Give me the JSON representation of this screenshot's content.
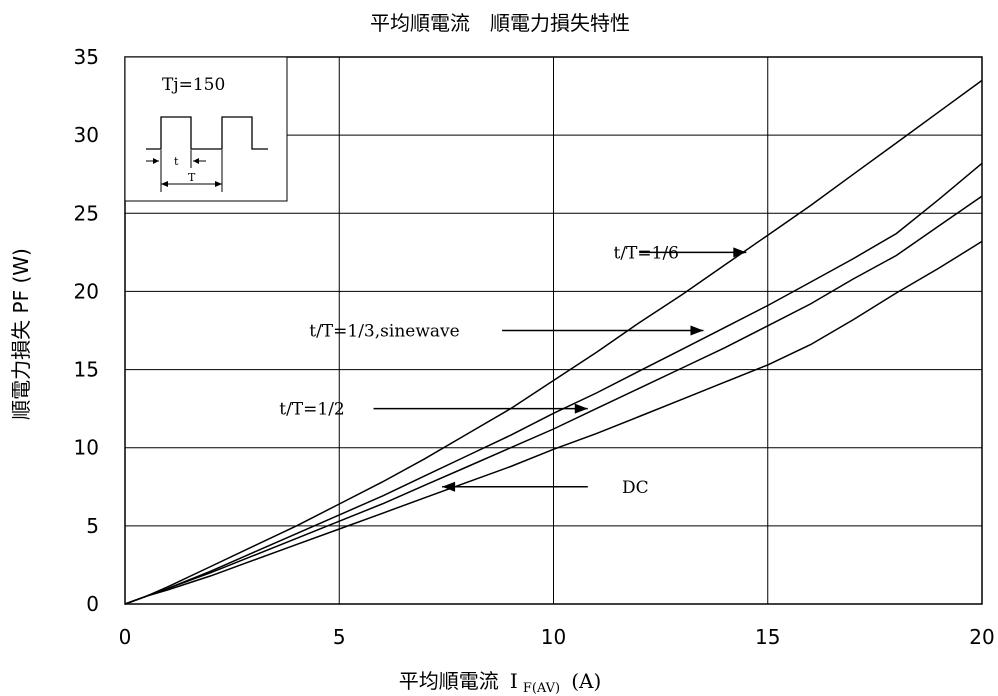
{
  "chart_data": {
    "type": "line",
    "title": "平均順電流　順電力損失特性",
    "xlabel_prefix": "平均順電流",
    "xlabel_symbol": "I",
    "xlabel_subscript": "F(AV)",
    "xlabel_unit": "(A)",
    "ylabel": "順電力損失 PF (W)",
    "xlim": [
      0,
      20
    ],
    "ylim": [
      0,
      35
    ],
    "xticks": [
      0,
      5,
      10,
      15,
      20
    ],
    "yticks": [
      0,
      5,
      10,
      15,
      20,
      25,
      30,
      35
    ],
    "grid": true,
    "series": [
      {
        "name": "t/T=1/6",
        "x": [
          0,
          0.5,
          1,
          2,
          3,
          4,
          5,
          6,
          7,
          8,
          9,
          10,
          11,
          12,
          13,
          14,
          15,
          16,
          17,
          18,
          19,
          20
        ],
        "y": [
          0,
          0.5,
          1.1,
          2.4,
          3.7,
          5.0,
          6.4,
          7.8,
          9.3,
          10.9,
          12.5,
          14.3,
          16.1,
          18.0,
          19.8,
          21.7,
          23.6,
          25.5,
          27.5,
          29.5,
          31.5,
          33.5
        ]
      },
      {
        "name": "t/T=1/3,sinewave",
        "x": [
          0,
          0.5,
          1,
          2,
          3,
          4,
          5,
          6,
          7,
          8,
          9,
          10,
          11,
          12,
          13,
          14,
          15,
          16,
          17,
          18,
          19,
          20
        ],
        "y": [
          0,
          0.5,
          1.0,
          2.1,
          3.3,
          4.5,
          5.7,
          6.9,
          8.2,
          9.5,
          10.8,
          12.2,
          13.5,
          14.9,
          16.3,
          17.7,
          19.1,
          20.6,
          22.1,
          23.7,
          25.9,
          28.2
        ]
      },
      {
        "name": "t/T=1/2",
        "x": [
          0,
          0.5,
          1,
          2,
          3,
          4,
          5,
          6,
          7,
          8,
          9,
          10,
          11,
          12,
          13,
          14,
          15,
          16,
          17,
          18,
          19,
          20
        ],
        "y": [
          0,
          0.5,
          1.0,
          2.0,
          3.1,
          4.2,
          5.3,
          6.4,
          7.6,
          8.8,
          10.0,
          11.2,
          12.5,
          13.8,
          15.1,
          16.4,
          17.8,
          19.2,
          20.8,
          22.3,
          24.2,
          26.1
        ]
      },
      {
        "name": "DC",
        "x": [
          0,
          0.5,
          1,
          2,
          3,
          4,
          5,
          6,
          7,
          8,
          9,
          10,
          11,
          12,
          13,
          14,
          15,
          16,
          17,
          18,
          19,
          20
        ],
        "y": [
          0,
          0.5,
          0.9,
          1.8,
          2.8,
          3.8,
          4.8,
          5.8,
          6.8,
          7.8,
          8.8,
          9.9,
          10.9,
          12.0,
          13.1,
          14.2,
          15.3,
          16.6,
          18.2,
          19.9,
          21.5,
          23.2
        ]
      }
    ],
    "annotations": [
      {
        "text": "t/T=1/6",
        "series": 0,
        "label_x": 11.4,
        "label_y": 22.5,
        "arrow_from_x": 12.0,
        "arrow_to_x": 14.5,
        "arrow_y": 22.5
      },
      {
        "text": "t/T=1/3,sinewave",
        "series": 1,
        "label_x": 4.3,
        "label_y": 17.5,
        "arrow_from_x": 8.8,
        "arrow_to_x": 13.5,
        "arrow_y": 17.5
      },
      {
        "text": "t/T=1/2",
        "series": 2,
        "label_x": 3.6,
        "label_y": 12.5,
        "arrow_from_x": 5.8,
        "arrow_to_x": 10.8,
        "arrow_y": 12.5
      },
      {
        "text": "DC",
        "series": 3,
        "label_x": 11.6,
        "label_y": 7.5,
        "arrow_from_x": 10.8,
        "arrow_to_x": 7.4,
        "arrow_y": 7.5
      }
    ],
    "inset": {
      "label": "Tj=150",
      "t_label": "t",
      "T_label": "T"
    }
  }
}
